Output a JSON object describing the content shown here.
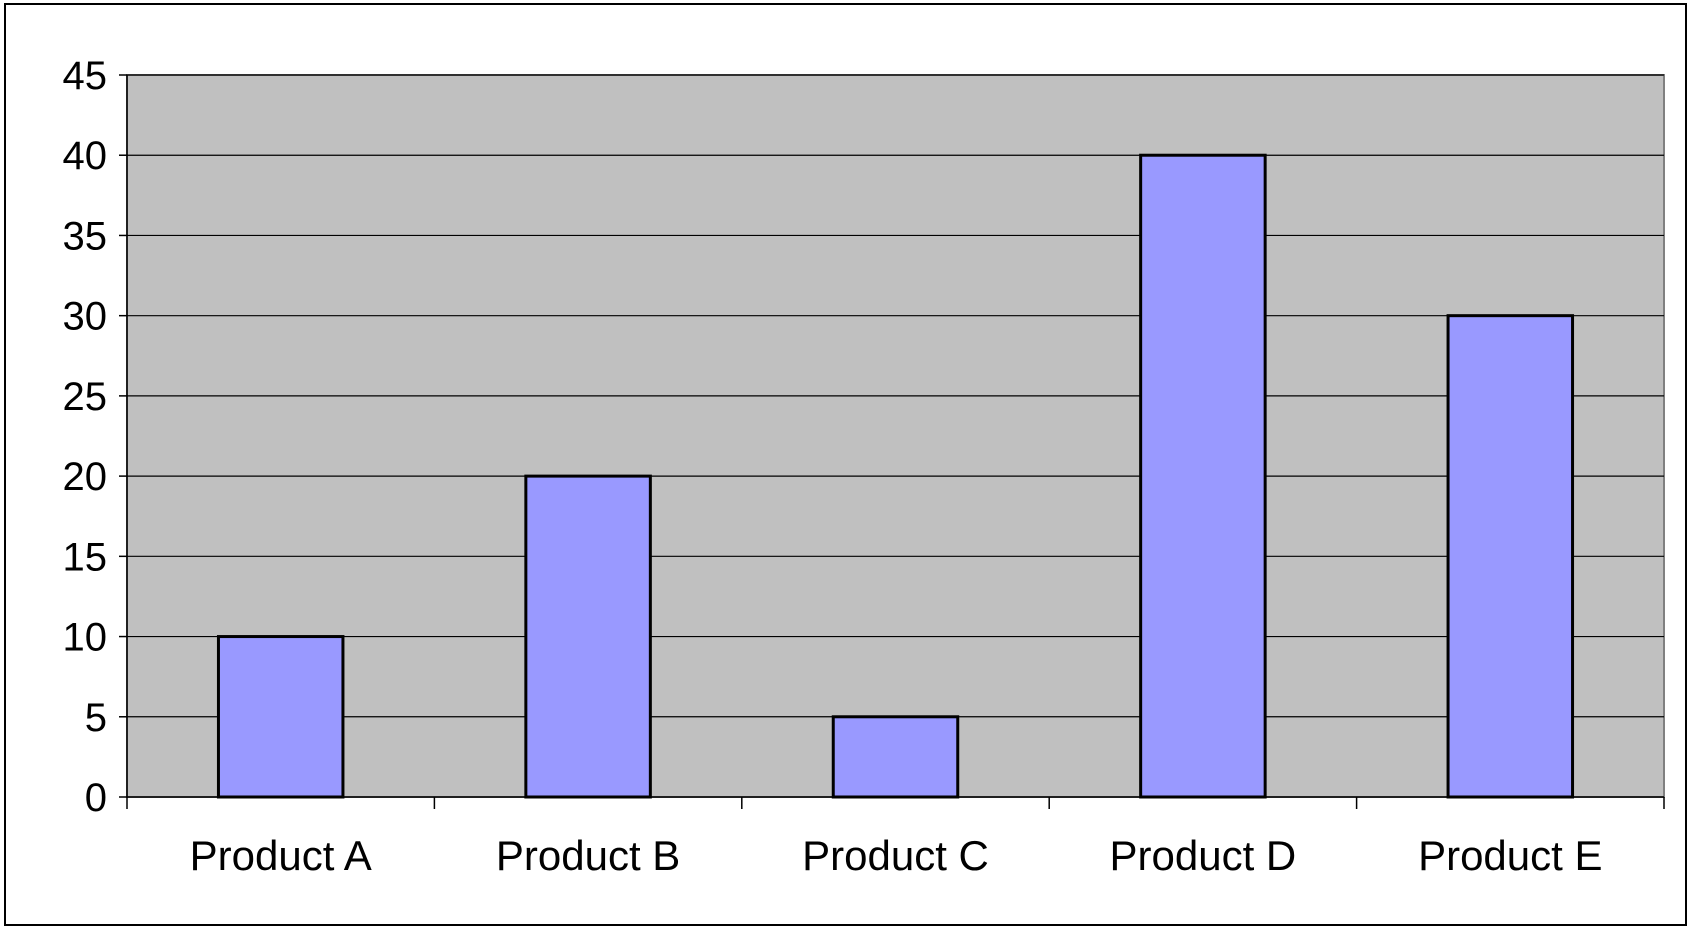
{
  "chart_data": {
    "type": "bar",
    "title": "",
    "xlabel": "",
    "ylabel": "",
    "categories": [
      "Product A",
      "Product B",
      "Product C",
      "Product D",
      "Product E"
    ],
    "values": [
      10,
      20,
      5,
      40,
      30
    ],
    "ylim": [
      0,
      45
    ],
    "yticks": [
      0,
      5,
      10,
      15,
      20,
      25,
      30,
      35,
      40,
      45
    ],
    "grid": true,
    "legend": "none",
    "colors": {
      "bar_fill": "#9999ff",
      "bar_stroke": "#000000",
      "plot_background": "#c0c0c0",
      "gridline": "#000000"
    }
  }
}
